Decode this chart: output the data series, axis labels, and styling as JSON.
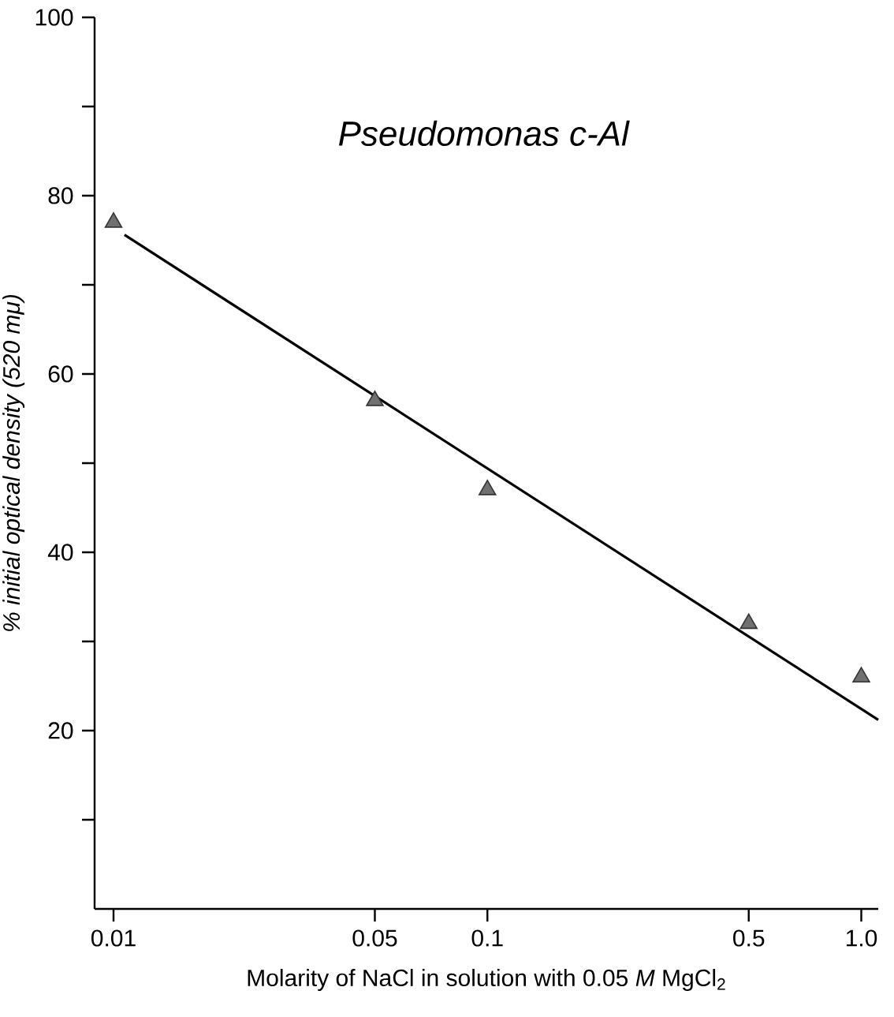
{
  "chart_data": {
    "type": "scatter",
    "xlabel": "Molarity of NaCl in solution with 0.05 *M* MgCl$_{2}$",
    "ylabel": "% initial optical density (520 mμ)",
    "annotations": [
      "Pseudomonas c-Al"
    ],
    "log": "x",
    "xlim": [
      0.0089,
      1.11
    ],
    "ylim": [
      0,
      100
    ],
    "xticks": [
      0.01,
      0.05,
      0.1,
      0.5,
      {
        "value": 1,
        "label": "1.0"
      }
    ],
    "yticks": [
      {
        "value": 10,
        "label": null
      },
      20,
      {
        "value": 30,
        "label": null
      },
      40,
      {
        "value": 50,
        "label": null
      },
      60,
      {
        "value": 70,
        "label": null
      },
      80,
      {
        "value": 90,
        "label": null
      },
      100
    ],
    "grid": false,
    "marker": "triangle",
    "series": [
      {
        "color": "#707070",
        "x": [
          0.01,
          0.05,
          0.1,
          0.5,
          1.0
        ],
        "values": [
          77,
          57,
          47,
          32,
          26
        ]
      },
      {
        "type": "line",
        "color": "#000000",
        "marker": "none",
        "line_style": "solid",
        "x": [
          0.0107,
          1.11
        ],
        "values": [
          75.6,
          21.2
        ]
      }
    ]
  }
}
